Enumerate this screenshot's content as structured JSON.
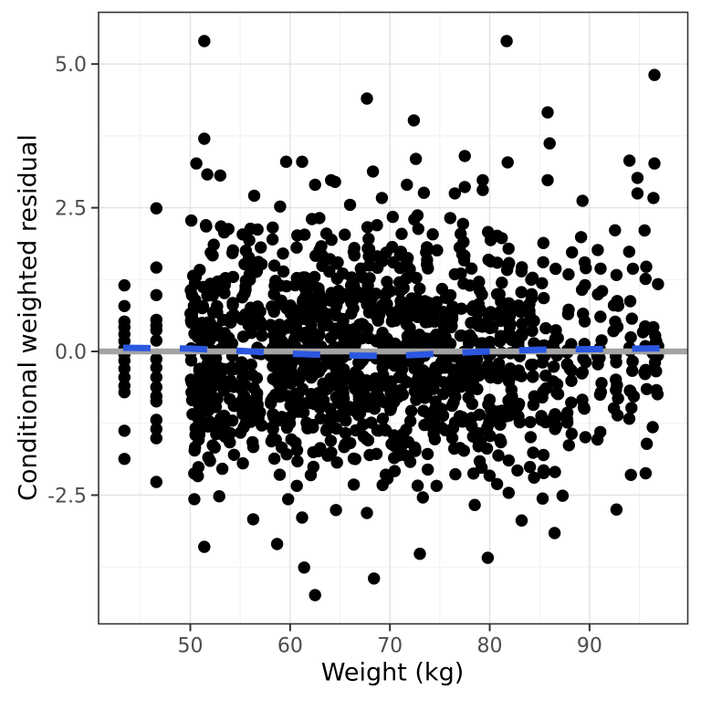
{
  "chart_data": {
    "type": "scatter",
    "title": "",
    "xlabel": "Weight (kg)",
    "ylabel": "Conditional weighted residual",
    "xlim": [
      40.81,
      99.84
    ],
    "ylim": [
      -4.74,
      5.9
    ],
    "x_ticks": [
      {
        "v": 50,
        "label": "50"
      },
      {
        "v": 60,
        "label": "60"
      },
      {
        "v": 70,
        "label": "70"
      },
      {
        "v": 80,
        "label": "80"
      },
      {
        "v": 90,
        "label": "90"
      }
    ],
    "y_ticks": [
      {
        "v": 5.0,
        "label": "5.0"
      },
      {
        "v": 2.5,
        "label": "2.5"
      },
      {
        "v": 0.0,
        "label": "0.0"
      },
      {
        "v": -2.5,
        "label": "-2.5"
      }
    ],
    "x_minor": [
      45,
      55,
      65,
      75,
      85,
      95
    ],
    "y_minor": [
      3.75,
      1.25,
      -1.25,
      -3.75
    ],
    "grid": true,
    "legend": "none",
    "colors": {
      "point": "#000000",
      "refline": "#A3A3A3",
      "smooth": "#2B57E0",
      "grid_major": "#E2E2E2",
      "grid_minor": "#EFEFEF",
      "panel_border": "#333333",
      "tick_mark": "#333333",
      "tick_label": "#4D4D4D",
      "axis_title": "#000000",
      "background": "#FFFFFF"
    },
    "refline": {
      "y": 0.0,
      "stroke_width": 6.5
    },
    "smooth": {
      "style": "dashed",
      "stroke_width": 7,
      "dash": [
        30,
        32
      ],
      "points": [
        [
          40.81,
          0.07
        ],
        [
          50,
          0.05
        ],
        [
          55,
          0.01
        ],
        [
          60,
          -0.04
        ],
        [
          65,
          -0.07
        ],
        [
          70,
          -0.08
        ],
        [
          75,
          -0.04
        ],
        [
          80,
          0.0
        ],
        [
          85,
          0.03
        ],
        [
          90,
          0.04
        ],
        [
          95,
          0.05
        ],
        [
          99.84,
          0.06
        ]
      ]
    },
    "scatter": {
      "point_radius": 6.7,
      "n_total_approx": 1430,
      "x_jitter": 0.28,
      "y_mean": -0.06,
      "y_sd": 1.12,
      "y_clip": 2.37,
      "seed": 42,
      "columns": [
        [
          50.3,
          34
        ],
        [
          51.0,
          36
        ],
        [
          51.8,
          34
        ],
        [
          52.5,
          30
        ],
        [
          53.3,
          30
        ],
        [
          54.1,
          26
        ],
        [
          55.3,
          30
        ],
        [
          56.1,
          28
        ],
        [
          56.9,
          24
        ],
        [
          58.3,
          30
        ],
        [
          59.1,
          30
        ],
        [
          59.9,
          32
        ],
        [
          60.7,
          32
        ],
        [
          61.5,
          32
        ],
        [
          62.3,
          32
        ],
        [
          63.1,
          32
        ],
        [
          63.9,
          32
        ],
        [
          64.7,
          32
        ],
        [
          65.5,
          32
        ],
        [
          66.3,
          32
        ],
        [
          67.1,
          30
        ],
        [
          67.9,
          30
        ],
        [
          68.7,
          30
        ],
        [
          69.5,
          30
        ],
        [
          70.3,
          30
        ],
        [
          71.1,
          30
        ],
        [
          71.9,
          30
        ],
        [
          72.7,
          30
        ],
        [
          73.6,
          28
        ],
        [
          74.5,
          28
        ],
        [
          75.4,
          28
        ],
        [
          76.3,
          28
        ],
        [
          77.2,
          28
        ],
        [
          78.1,
          28
        ],
        [
          79.0,
          28
        ],
        [
          80.0,
          28
        ],
        [
          81.0,
          26
        ],
        [
          82.0,
          26
        ],
        [
          83.0,
          24
        ],
        [
          84.2,
          22
        ],
        [
          85.4,
          22
        ],
        [
          86.6,
          20
        ],
        [
          88.0,
          18
        ],
        [
          89.4,
          16
        ],
        [
          91.0,
          16
        ],
        [
          92.6,
          16
        ],
        [
          94.2,
          16
        ],
        [
          95.6,
          14
        ],
        [
          96.6,
          14
        ]
      ],
      "sparse_columns": [
        {
          "w": 43.4,
          "values": [
            1.15,
            0.79,
            0.52,
            0.42,
            0.3,
            0.18,
            0.05,
            -0.05,
            -0.16,
            -0.3,
            -0.45,
            -0.6,
            -0.71,
            -1.38,
            -1.87
          ]
        },
        {
          "w": 46.6,
          "values": [
            2.49,
            1.46,
            0.98,
            0.55,
            0.45,
            0.37,
            0.19,
            -0.13,
            -0.28,
            -0.45,
            -0.62,
            -0.78,
            -0.87,
            -1.19,
            -1.35,
            -1.51,
            -2.27
          ]
        }
      ],
      "outliers": [
        [
          51.4,
          5.4
        ],
        [
          81.7,
          5.4
        ],
        [
          96.5,
          4.81
        ],
        [
          67.7,
          4.4
        ],
        [
          85.8,
          4.16
        ],
        [
          72.4,
          4.02
        ],
        [
          51.4,
          3.7
        ],
        [
          86.0,
          3.62
        ],
        [
          72.6,
          3.35
        ],
        [
          77.5,
          3.4
        ],
        [
          81.8,
          3.29
        ],
        [
          94.0,
          3.32
        ],
        [
          96.5,
          3.27
        ],
        [
          61.2,
          3.3
        ],
        [
          59.6,
          3.3
        ],
        [
          50.6,
          3.27
        ],
        [
          51.7,
          3.08
        ],
        [
          53.0,
          3.06
        ],
        [
          68.3,
          3.13
        ],
        [
          64.1,
          2.98
        ],
        [
          64.5,
          2.95
        ],
        [
          62.5,
          2.9
        ],
        [
          71.7,
          2.9
        ],
        [
          79.3,
          2.98
        ],
        [
          85.8,
          2.98
        ],
        [
          94.8,
          3.02
        ],
        [
          77.5,
          2.86
        ],
        [
          79.3,
          2.81
        ],
        [
          73.4,
          2.76
        ],
        [
          76.5,
          2.75
        ],
        [
          94.8,
          2.75
        ],
        [
          56.4,
          2.71
        ],
        [
          69.2,
          2.67
        ],
        [
          89.3,
          2.62
        ],
        [
          96.4,
          2.67
        ],
        [
          66.0,
          2.55
        ],
        [
          59.0,
          2.52
        ],
        [
          62.5,
          -4.24
        ],
        [
          68.4,
          -3.95
        ],
        [
          61.4,
          -3.76
        ],
        [
          79.8,
          -3.59
        ],
        [
          73.0,
          -3.52
        ],
        [
          51.4,
          -3.4
        ],
        [
          58.7,
          -3.35
        ],
        [
          86.5,
          -3.16
        ],
        [
          83.2,
          -2.94
        ],
        [
          56.3,
          -2.92
        ],
        [
          61.2,
          -2.89
        ],
        [
          67.7,
          -2.81
        ],
        [
          64.6,
          -2.76
        ],
        [
          92.7,
          -2.75
        ],
        [
          78.5,
          -2.67
        ],
        [
          50.4,
          -2.57
        ],
        [
          59.8,
          -2.57
        ],
        [
          85.3,
          -2.56
        ],
        [
          73.3,
          -2.54
        ],
        [
          52.9,
          -2.52
        ],
        [
          87.3,
          -2.51
        ],
        [
          81.9,
          -2.46
        ]
      ]
    }
  }
}
